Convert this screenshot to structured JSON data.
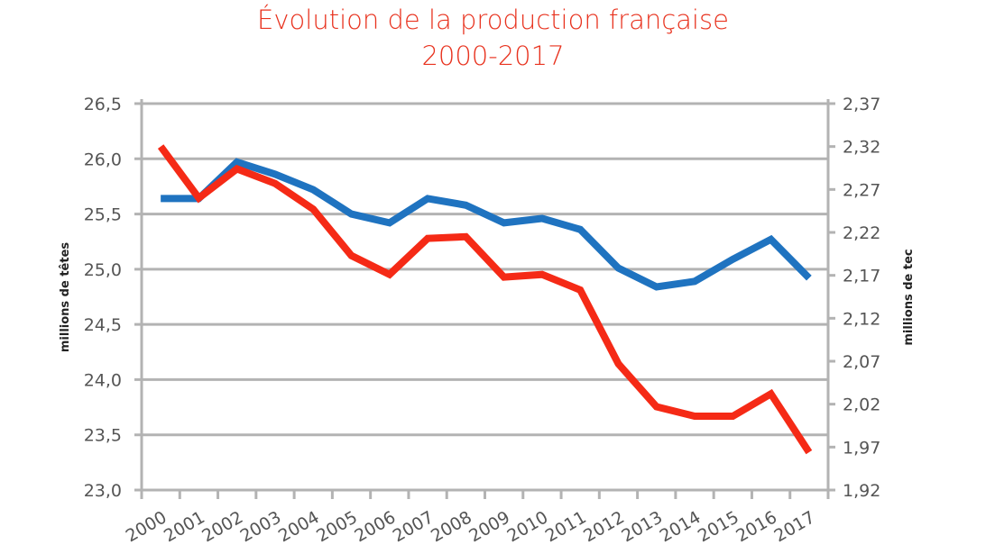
{
  "chart_data": {
    "type": "line",
    "title": "Évolution de la production française",
    "subtitle": "2000-2017",
    "categories": [
      "2000",
      "2001",
      "2002",
      "2003",
      "2004",
      "2005",
      "2006",
      "2007",
      "2008",
      "2009",
      "2010",
      "2011",
      "2012",
      "2013",
      "2014",
      "2015",
      "2016",
      "2017"
    ],
    "y_left": {
      "label": "millions de têtes",
      "range": [
        23.0,
        26.5
      ],
      "ticks": [
        "23,0",
        "23,5",
        "24,0",
        "24,5",
        "25,0",
        "25,5",
        "26,0",
        "26,5"
      ],
      "tick_values": [
        23.0,
        23.5,
        24.0,
        24.5,
        25.0,
        25.5,
        26.0,
        26.5
      ]
    },
    "y_right": {
      "label": "millions de tec",
      "range": [
        1.92,
        2.37
      ],
      "ticks": [
        "1,92",
        "1,97",
        "2,02",
        "2,07",
        "2,12",
        "2,17",
        "2,22",
        "2,27",
        "2,32",
        "2,37"
      ],
      "tick_values": [
        1.92,
        1.97,
        2.02,
        2.07,
        2.12,
        2.17,
        2.22,
        2.27,
        2.32,
        2.37
      ]
    },
    "grid": true,
    "legend": "none",
    "series": [
      {
        "axis": "left",
        "color": "#1f73c0",
        "values": [
          25.64,
          25.64,
          25.97,
          25.86,
          25.72,
          25.5,
          25.42,
          25.64,
          25.58,
          25.42,
          25.46,
          25.36,
          25.01,
          24.84,
          24.89,
          25.09,
          25.27,
          24.92
        ]
      },
      {
        "axis": "right",
        "color": "#f52a16",
        "values": [
          2.32,
          2.26,
          2.294,
          2.277,
          2.247,
          2.193,
          2.171,
          2.213,
          2.215,
          2.168,
          2.171,
          2.153,
          2.067,
          2.017,
          2.006,
          2.006,
          2.032,
          1.964
        ]
      }
    ]
  }
}
